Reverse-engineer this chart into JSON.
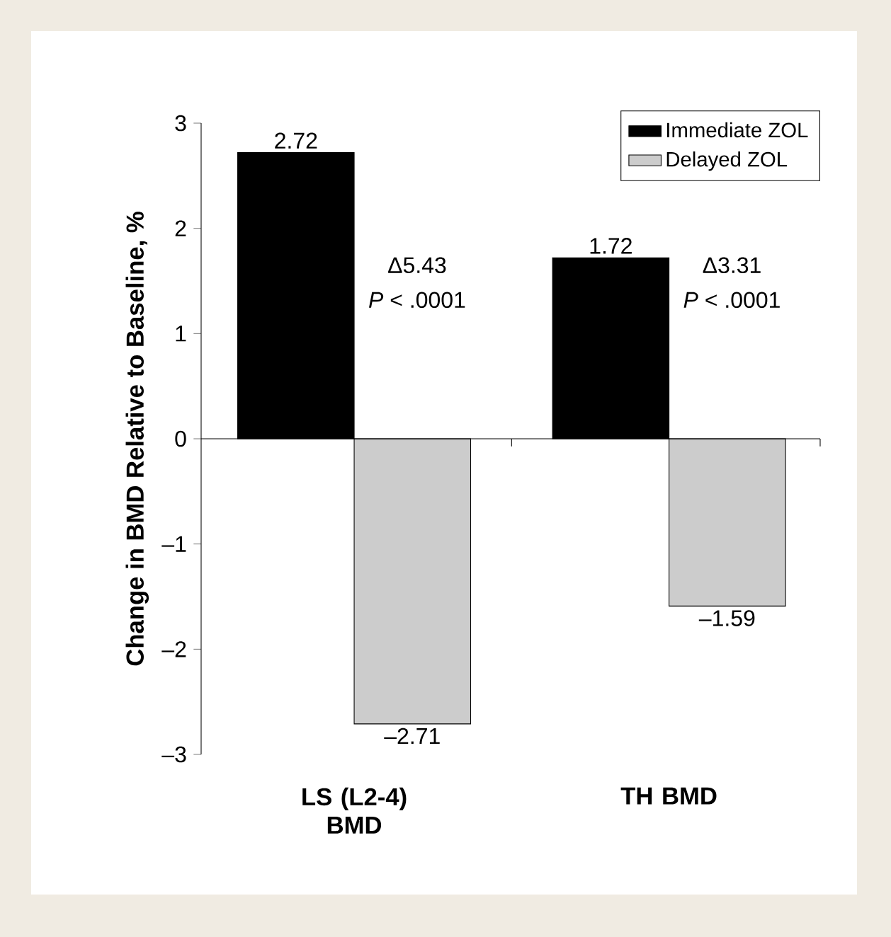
{
  "chart_data": {
    "type": "bar",
    "categories": [
      "LS (L2-4) BMD",
      "TH BMD"
    ],
    "series": [
      {
        "name": "Immediate ZOL",
        "color": "#000000",
        "values": [
          2.72,
          1.72
        ],
        "value_labels": [
          "2.72",
          "1.72"
        ]
      },
      {
        "name": "Delayed ZOL",
        "color": "#cccccc",
        "values": [
          -2.71,
          -1.59
        ],
        "value_labels": [
          "–2.71",
          "–1.59"
        ]
      }
    ],
    "ylabel": "Change in BMD Relative to Baseline, %",
    "ylim": [
      -3,
      3
    ],
    "yticks": [
      {
        "value": -3,
        "label": "–3"
      },
      {
        "value": -2,
        "label": "–2"
      },
      {
        "value": -1,
        "label": "–1"
      },
      0,
      1,
      2,
      3
    ],
    "annotations": [
      "Δ5.43",
      "*P* < .0001",
      "Δ3.31",
      "*P* < .0001"
    ],
    "legend": "top right"
  }
}
